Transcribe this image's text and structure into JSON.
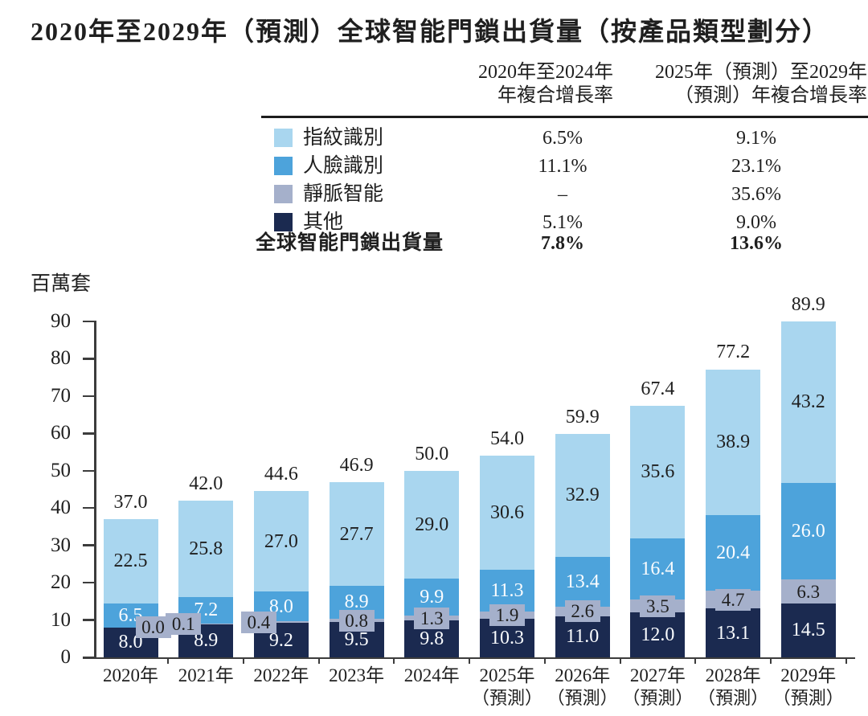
{
  "title": "2020年至2029年（預測）全球智能門鎖出貨量（按產品類型劃分）",
  "colors": {
    "fingerprint": "#a9d6ef",
    "face": "#4da3db",
    "vein": "#a5b0cb",
    "other": "#1b2a50",
    "text_dark": "#1f1f1f",
    "text_light": "#fafcfe",
    "axis": "#3c3c3c"
  },
  "cagr_table": {
    "col1_header_line1": "2020年至2024年",
    "col1_header_line2": "年複合增長率",
    "col2_header_line1": "2025年（預測）至2029年",
    "col2_header_line2": "（預測）年複合增長率",
    "rows": [
      {
        "label": "指紋識別",
        "series": "fingerprint",
        "cagr1": "6.5%",
        "cagr2": "9.1%"
      },
      {
        "label": "人臉識別",
        "series": "face",
        "cagr1": "11.1%",
        "cagr2": "23.1%"
      },
      {
        "label": "靜脈智能",
        "series": "vein",
        "cagr1": "–",
        "cagr2": "35.6%"
      },
      {
        "label": "其他",
        "series": "other",
        "cagr1": "5.1%",
        "cagr2": "9.0%"
      }
    ],
    "total_row": {
      "label": "全球智能門鎖出貨量",
      "cagr1": "7.8%",
      "cagr2": "13.6%"
    }
  },
  "chart_data": {
    "type": "bar",
    "stacked": true,
    "title": "2020年至2029年（預測）全球智能門鎖出貨量（按產品類型劃分）",
    "xlabel": "",
    "ylabel": "百萬套",
    "ylim": [
      0,
      90
    ],
    "ytick_step": 10,
    "grid": false,
    "legend_position": "top-left-table",
    "categories": [
      {
        "label": "2020年",
        "sublabel": ""
      },
      {
        "label": "2021年",
        "sublabel": ""
      },
      {
        "label": "2022年",
        "sublabel": ""
      },
      {
        "label": "2023年",
        "sublabel": ""
      },
      {
        "label": "2024年",
        "sublabel": ""
      },
      {
        "label": "2025年",
        "sublabel": "（預測）"
      },
      {
        "label": "2026年",
        "sublabel": "（預測）"
      },
      {
        "label": "2027年",
        "sublabel": "（預測）"
      },
      {
        "label": "2028年",
        "sublabel": "（預測）"
      },
      {
        "label": "2029年",
        "sublabel": "（預測）"
      }
    ],
    "series": [
      {
        "name": "其他",
        "key": "other",
        "values": [
          8.0,
          8.9,
          9.2,
          9.5,
          9.8,
          10.3,
          11.0,
          12.0,
          13.1,
          14.5
        ]
      },
      {
        "name": "靜脈智能",
        "key": "vein",
        "values": [
          0.0,
          0.1,
          0.4,
          0.8,
          1.3,
          1.9,
          2.6,
          3.5,
          4.7,
          6.3
        ]
      },
      {
        "name": "人臉識別",
        "key": "face",
        "values": [
          6.5,
          7.2,
          8.0,
          8.9,
          9.9,
          11.3,
          13.4,
          16.4,
          20.4,
          26.0
        ]
      },
      {
        "name": "指紋識別",
        "key": "fingerprint",
        "values": [
          22.5,
          25.8,
          27.0,
          27.7,
          29.0,
          30.6,
          32.9,
          35.6,
          38.9,
          43.2
        ]
      }
    ],
    "totals": [
      37.0,
      42.0,
      44.6,
      46.9,
      50.0,
      54.0,
      59.9,
      67.4,
      77.2,
      89.9
    ]
  }
}
